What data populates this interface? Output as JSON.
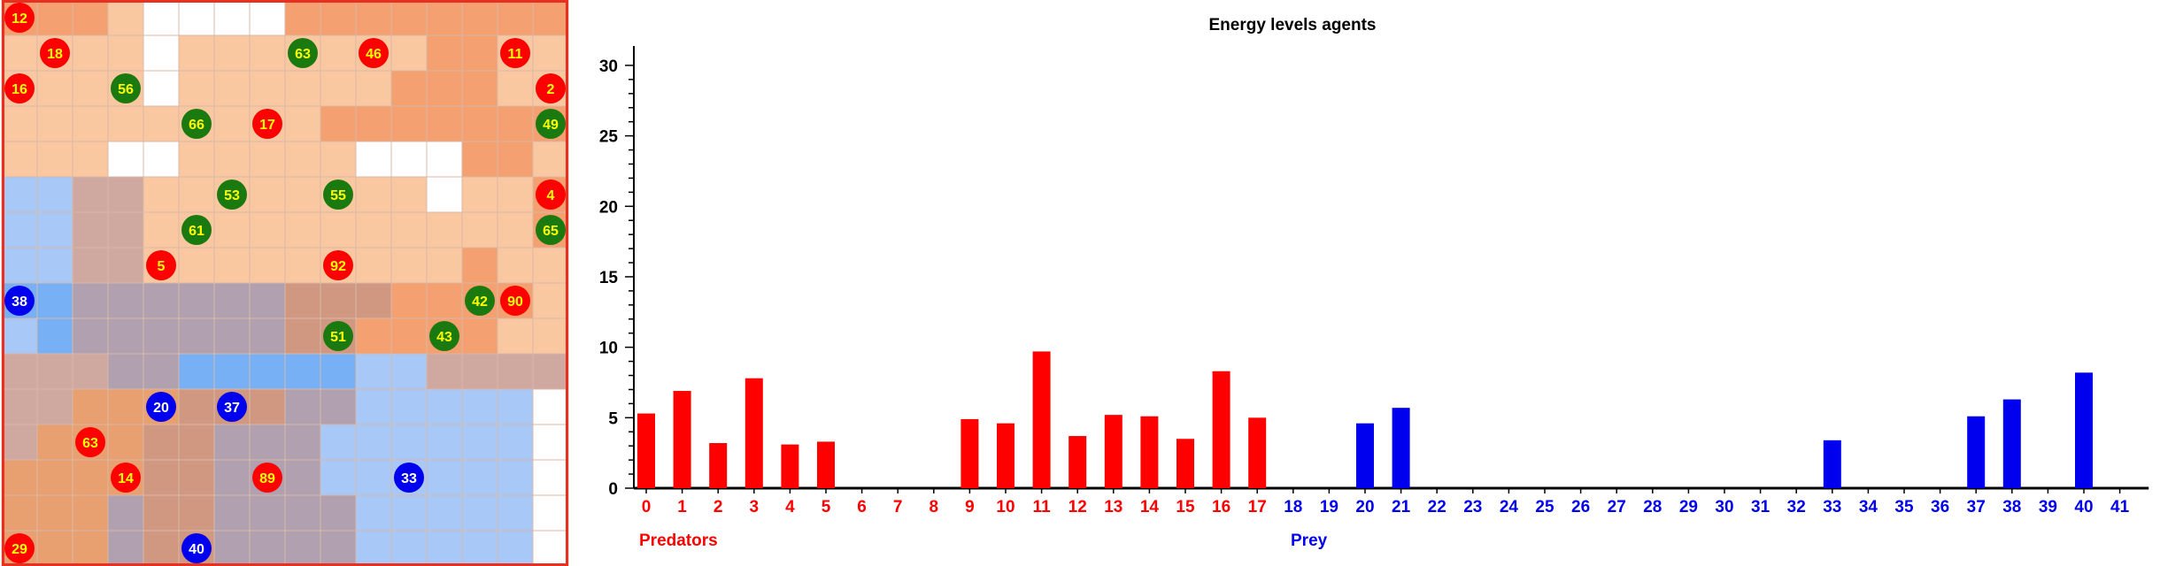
{
  "grid": {
    "size": 16,
    "tile_colors": {
      "B": "#ffffff",
      "O": "#fac8a0",
      "D": "#f5a070",
      "P": "#cfa8a0",
      "G": "#b0a0b0",
      "L": "#a8c8f8",
      "M": "#78b0f5",
      "A": "#e8a070",
      "R": "#d09880"
    },
    "tiles": [
      "DDDOBBBBDDDDDDDD",
      "OOOOBOOOOOOODDOO",
      "OOOOBOOOOOODDDOO",
      "OOOOOOOOODDDDDDD",
      "OOOBBOOOOOBBBDDO",
      "LLPPOOOOOOOOBOOD",
      "LLPPOOOOOOOOOOOD",
      "LLPPOOOOOOOOODOO",
      "MMGGGGGGRRRDDDDO",
      "LMGGGGGGRRDDDDOO",
      "PPPGGMMMMMLLPPPP",
      "PPAAARRRGGLLLLLB",
      "PAAARRGGGLLLLLLB",
      "AAAARRGGGLLLLLLB",
      "AAAGRRGGGGLLLLLB",
      "AAAGRRGGGGLLLLLB"
    ],
    "border_color": "#e83020",
    "agents": [
      {
        "id": "12",
        "kind": "predator",
        "col": 0,
        "row": 0
      },
      {
        "id": "18",
        "kind": "predator",
        "col": 1,
        "row": 1
      },
      {
        "id": "46",
        "kind": "predator",
        "col": 10,
        "row": 1
      },
      {
        "id": "11",
        "kind": "predator",
        "col": 14,
        "row": 1
      },
      {
        "id": "16",
        "kind": "predator",
        "col": 0,
        "row": 2
      },
      {
        "id": "2",
        "kind": "predator",
        "col": 15,
        "row": 2
      },
      {
        "id": "17",
        "kind": "predator",
        "col": 7,
        "row": 3
      },
      {
        "id": "4",
        "kind": "predator",
        "col": 15,
        "row": 5
      },
      {
        "id": "5",
        "kind": "predator",
        "col": 4,
        "row": 7
      },
      {
        "id": "92",
        "kind": "predator",
        "col": 9,
        "row": 7
      },
      {
        "id": "90",
        "kind": "predator",
        "col": 14,
        "row": 8
      },
      {
        "id": "63",
        "kind": "predator",
        "col": 2,
        "row": 12
      },
      {
        "id": "14",
        "kind": "predator",
        "col": 3,
        "row": 13
      },
      {
        "id": "89",
        "kind": "predator",
        "col": 7,
        "row": 13
      },
      {
        "id": "29",
        "kind": "predator",
        "col": 0,
        "row": 15
      },
      {
        "id": "63",
        "kind": "plant",
        "col": 8,
        "row": 1
      },
      {
        "id": "56",
        "kind": "plant",
        "col": 3,
        "row": 2
      },
      {
        "id": "66",
        "kind": "plant",
        "col": 5,
        "row": 3
      },
      {
        "id": "49",
        "kind": "plant",
        "col": 15,
        "row": 3
      },
      {
        "id": "53",
        "kind": "plant",
        "col": 6,
        "row": 5
      },
      {
        "id": "55",
        "kind": "plant",
        "col": 9,
        "row": 5
      },
      {
        "id": "61",
        "kind": "plant",
        "col": 5,
        "row": 6
      },
      {
        "id": "65",
        "kind": "plant",
        "col": 15,
        "row": 6
      },
      {
        "id": "42",
        "kind": "plant",
        "col": 13,
        "row": 8
      },
      {
        "id": "51",
        "kind": "plant",
        "col": 9,
        "row": 9
      },
      {
        "id": "43",
        "kind": "plant",
        "col": 12,
        "row": 9
      },
      {
        "id": "38",
        "kind": "prey",
        "col": 0,
        "row": 8
      },
      {
        "id": "20",
        "kind": "prey",
        "col": 4,
        "row": 11
      },
      {
        "id": "37",
        "kind": "prey",
        "col": 6,
        "row": 11
      },
      {
        "id": "33",
        "kind": "prey",
        "col": 11,
        "row": 13
      },
      {
        "id": "40",
        "kind": "prey",
        "col": 5,
        "row": 15
      }
    ],
    "agent_colors": {
      "predator": "#ff0000",
      "plant": "#1a7a10",
      "prey": "#0000ee"
    },
    "agent_text_colors": {
      "predator": "#ffff00",
      "plant": "#ffff00",
      "prey": "#ffffff"
    }
  },
  "chart_data": {
    "type": "bar",
    "title": "Energy levels agents",
    "ylim": [
      0,
      31
    ],
    "y_ticks": [
      0,
      5,
      10,
      15,
      20,
      25,
      30
    ],
    "categories": [
      "0",
      "1",
      "2",
      "3",
      "4",
      "5",
      "6",
      "7",
      "8",
      "9",
      "10",
      "11",
      "12",
      "13",
      "14",
      "15",
      "16",
      "17",
      "18",
      "19",
      "20",
      "21",
      "22",
      "23",
      "24",
      "25",
      "26",
      "27",
      "28",
      "29",
      "30",
      "31",
      "32",
      "33",
      "34",
      "35",
      "36",
      "37",
      "38",
      "39",
      "40",
      "41"
    ],
    "values": [
      5.3,
      6.9,
      3.2,
      7.8,
      3.1,
      3.3,
      0,
      0,
      0,
      4.9,
      4.6,
      9.7,
      3.7,
      5.2,
      5.1,
      3.5,
      8.3,
      5.0,
      0,
      0,
      4.6,
      5.7,
      0,
      0,
      0,
      0,
      0,
      0,
      0,
      0,
      0,
      0,
      0,
      3.4,
      0,
      0,
      0,
      5.1,
      6.3,
      0,
      8.2,
      0
    ],
    "groups": [
      {
        "label": "Predators",
        "start": 0,
        "end": 17,
        "color": "#ff0000"
      },
      {
        "label": "Prey",
        "start": 18,
        "end": 41,
        "color": "#0000ee"
      }
    ],
    "grid": false
  }
}
